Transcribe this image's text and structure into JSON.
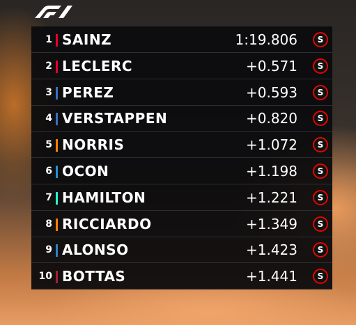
{
  "leaderboard": {
    "rows": [
      {
        "position": "1",
        "driver": "SAINZ",
        "time": "1:19.806",
        "tyre": "S",
        "color": "#e8002d"
      },
      {
        "position": "2",
        "driver": "LECLERC",
        "time": "+0.571",
        "tyre": "S",
        "color": "#e8002d"
      },
      {
        "position": "3",
        "driver": "PEREZ",
        "time": "+0.593",
        "tyre": "S",
        "color": "#3671c6"
      },
      {
        "position": "4",
        "driver": "VERSTAPPEN",
        "time": "+0.820",
        "tyre": "S",
        "color": "#3671c6"
      },
      {
        "position": "5",
        "driver": "NORRIS",
        "time": "+1.072",
        "tyre": "S",
        "color": "#ff8000"
      },
      {
        "position": "6",
        "driver": "OCON",
        "time": "+1.198",
        "tyre": "S",
        "color": "#2293d1"
      },
      {
        "position": "7",
        "driver": "HAMILTON",
        "time": "+1.221",
        "tyre": "S",
        "color": "#27f4d2"
      },
      {
        "position": "8",
        "driver": "RICCIARDO",
        "time": "+1.349",
        "tyre": "S",
        "color": "#ff8000"
      },
      {
        "position": "9",
        "driver": "ALONSO",
        "time": "+1.423",
        "tyre": "S",
        "color": "#2d82c8"
      },
      {
        "position": "10",
        "driver": "BOTTAS",
        "time": "+1.441",
        "tyre": "S",
        "color": "#a42134"
      }
    ]
  }
}
